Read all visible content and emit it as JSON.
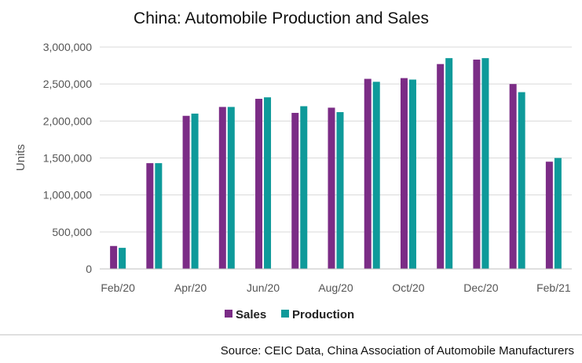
{
  "chart_data": {
    "type": "bar",
    "title": "China: Automobile Production and Sales",
    "ylabel": "Units",
    "xlabel": "",
    "categories": [
      "Feb/20",
      "Mar/20",
      "Apr/20",
      "May/20",
      "Jun/20",
      "Jul/20",
      "Aug/20",
      "Sep/20",
      "Oct/20",
      "Nov/20",
      "Dec/20",
      "Jan/21",
      "Feb/21"
    ],
    "x_tick_labels": [
      "Feb/20",
      "",
      "Apr/20",
      "",
      "Jun/20",
      "",
      "Aug/20",
      "",
      "Oct/20",
      "",
      "Dec/20",
      "",
      "Feb/21"
    ],
    "ylim": [
      0,
      3000000
    ],
    "y_ticks": [
      0,
      500000,
      1000000,
      1500000,
      2000000,
      2500000,
      3000000
    ],
    "y_tick_labels": [
      "0",
      "500,000",
      "1,000,000",
      "1,500,000",
      "2,000,000",
      "2,500,000",
      "3,000,000"
    ],
    "series": [
      {
        "name": "Sales",
        "color": "#7B2C86",
        "values": [
          310000,
          1430000,
          2070000,
          2190000,
          2300000,
          2110000,
          2180000,
          2570000,
          2580000,
          2770000,
          2830000,
          2500000,
          1450000
        ]
      },
      {
        "name": "Production",
        "color": "#0E9A9A",
        "values": [
          285000,
          1430000,
          2100000,
          2190000,
          2320000,
          2200000,
          2120000,
          2530000,
          2560000,
          2850000,
          2850000,
          2390000,
          1500000
        ]
      }
    ],
    "legend_position": "bottom",
    "grid": "horizontal",
    "grid_color": "#d9d9d9",
    "source": "Source: CEIC Data, China Association of Automobile Manufacturers"
  }
}
